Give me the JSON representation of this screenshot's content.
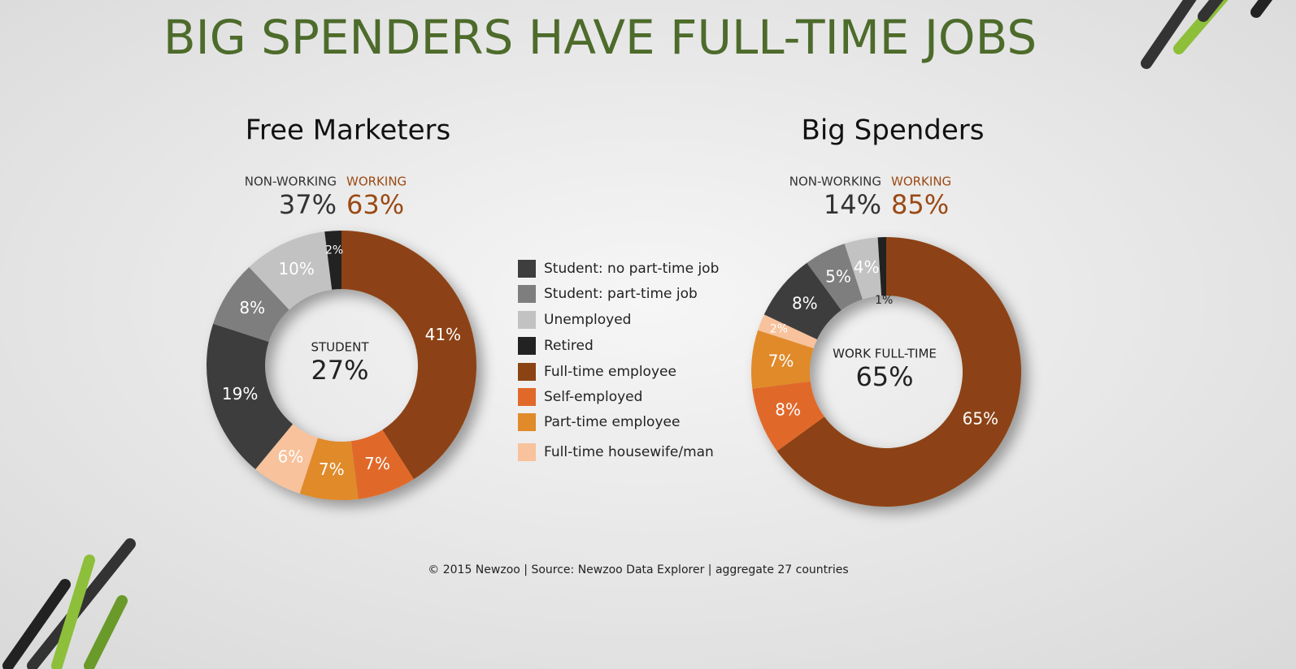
{
  "title": "BIG SPENDERS HAVE FULL-TIME JOBS",
  "footer": "© 2015 Newzoo | Source: Newzoo Data Explorer | aggregate 27 countries",
  "chart_data": [
    {
      "type": "pie",
      "title": "Free Marketers",
      "categories": [
        "Full-time employee",
        "Self-employed",
        "Part-time employee",
        "Full-time housewife/man",
        "Student: no part-time job",
        "Student: part-time job",
        "Unemployed",
        "Retired"
      ],
      "values": [
        41,
        7,
        7,
        6,
        19,
        8,
        10,
        2
      ],
      "value_labels": [
        "41%",
        "7%",
        "7%",
        "6%",
        "19%",
        "8%",
        "10%",
        "2%"
      ],
      "colors": [
        "#8c4313",
        "#e0692a",
        "#e08a2a",
        "#f7c29c",
        "#3e3e3e",
        "#7e7e7e",
        "#c2c2c2",
        "#222222"
      ],
      "center_label": "STUDENT",
      "center_value": "27%",
      "non_working_label": "NON-WORKING",
      "non_working_value": "37%",
      "working_label": "WORKING",
      "working_value": "63%"
    },
    {
      "type": "pie",
      "title": "Big Spenders",
      "categories": [
        "Full-time employee",
        "Self-employed",
        "Part-time employee",
        "Full-time housewife/man",
        "Student: no part-time job",
        "Student: part-time job",
        "Unemployed",
        "Retired"
      ],
      "values": [
        65,
        8,
        7,
        2,
        8,
        5,
        4,
        1
      ],
      "value_labels": [
        "65%",
        "8%",
        "7%",
        "2%",
        "8%",
        "5%",
        "4%",
        "1%"
      ],
      "colors": [
        "#8c4313",
        "#e0692a",
        "#e08a2a",
        "#f7c29c",
        "#3e3e3e",
        "#7e7e7e",
        "#c2c2c2",
        "#222222"
      ],
      "center_label": "WORK FULL-TIME",
      "center_value": "65%",
      "non_working_label": "NON-WORKING",
      "non_working_value": "14%",
      "working_label": "WORKING",
      "working_value": "85%"
    }
  ],
  "legend_order": [
    4,
    5,
    6,
    7,
    0,
    1,
    2,
    3
  ]
}
